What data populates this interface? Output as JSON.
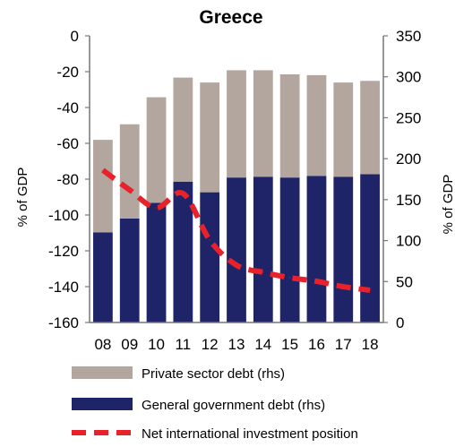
{
  "chart_data": {
    "type": "bar",
    "title": "Greece",
    "categories": [
      "08",
      "09",
      "10",
      "11",
      "12",
      "13",
      "14",
      "15",
      "16",
      "17",
      "18"
    ],
    "y_left": {
      "label": "% of GDP",
      "min": -160,
      "max": 0,
      "ticks": [
        "0",
        "-20",
        "-40",
        "-60",
        "-80",
        "-100",
        "-120",
        "-140",
        "-160"
      ]
    },
    "y_right": {
      "label": "% of GDP",
      "min": 0,
      "max": 350,
      "ticks": [
        "350",
        "300",
        "250",
        "200",
        "150",
        "100",
        "50",
        "0"
      ]
    },
    "series": [
      {
        "name": "General government debt (rhs)",
        "type": "stacked-bar",
        "axis": "right",
        "color": "#1f2468",
        "values": [
          110,
          127,
          146,
          172,
          159,
          177,
          178,
          177,
          179,
          178,
          181
        ]
      },
      {
        "name": "Private sector debt (rhs)",
        "type": "stacked-bar",
        "axis": "right",
        "color": "#b2a69f",
        "values": [
          113,
          115,
          129,
          127,
          134,
          131,
          130,
          126,
          123,
          115,
          114
        ]
      },
      {
        "name": "Net international investment position",
        "type": "line",
        "axis": "left",
        "color": "#e8212b",
        "style": "dashed",
        "values": [
          -75,
          -86,
          -96,
          -88,
          -114,
          -128,
          -132,
          -135,
          -137,
          -140,
          -142
        ]
      }
    ],
    "legend": [
      {
        "label": "Private sector debt (rhs)",
        "kind": "box",
        "color": "#b2a69f"
      },
      {
        "label": "General government debt (rhs)",
        "kind": "box",
        "color": "#1f2468"
      },
      {
        "label": "Net international investment position",
        "kind": "dash",
        "color": "#e8212b"
      }
    ],
    "legend_position": "bottom",
    "grid": false
  }
}
